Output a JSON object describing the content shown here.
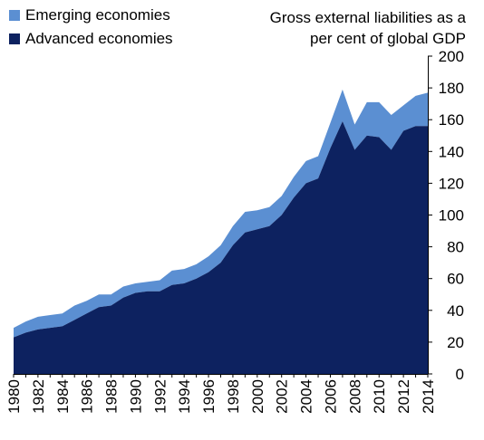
{
  "chart_data": {
    "type": "area",
    "stacked": true,
    "title": "Gross external  liabilities as a per cent of global GDP",
    "x": [
      1980,
      1981,
      1982,
      1983,
      1984,
      1985,
      1986,
      1987,
      1988,
      1989,
      1990,
      1991,
      1992,
      1993,
      1994,
      1995,
      1996,
      1997,
      1998,
      1999,
      2000,
      2001,
      2002,
      2003,
      2004,
      2005,
      2006,
      2007,
      2008,
      2009,
      2010,
      2011,
      2012,
      2013,
      2014
    ],
    "x_tick_labels": [
      "1980",
      "1982",
      "1984",
      "1986",
      "1988",
      "1990",
      "1992",
      "1994",
      "1996",
      "1998",
      "2000",
      "2002",
      "2004",
      "2006",
      "2008",
      "2010",
      "2012",
      "2014"
    ],
    "ylim": [
      0,
      200
    ],
    "y_ticks": [
      0,
      20,
      40,
      60,
      80,
      100,
      120,
      140,
      160,
      180,
      200
    ],
    "y_axis_position": "right",
    "legend_position": "top-left",
    "series": [
      {
        "name": "Advanced economies",
        "color": "#0d2260",
        "values": [
          23,
          26,
          28,
          29,
          30,
          34,
          38,
          42,
          43,
          48,
          51,
          52,
          52,
          56,
          57,
          60,
          64,
          70,
          81,
          89,
          91,
          93,
          100,
          111,
          120,
          123,
          142,
          159,
          141,
          150,
          149,
          141,
          153,
          156,
          156
        ]
      },
      {
        "name": "Emerging economies",
        "color": "#5b8fd2",
        "values": [
          6,
          7,
          8,
          8,
          8,
          9,
          8,
          8,
          7,
          7,
          6,
          6,
          7,
          9,
          9,
          9,
          10,
          11,
          12,
          13,
          12,
          12,
          12,
          13,
          14,
          14,
          16,
          20,
          16,
          21,
          22,
          22,
          16,
          19,
          21
        ]
      }
    ]
  }
}
